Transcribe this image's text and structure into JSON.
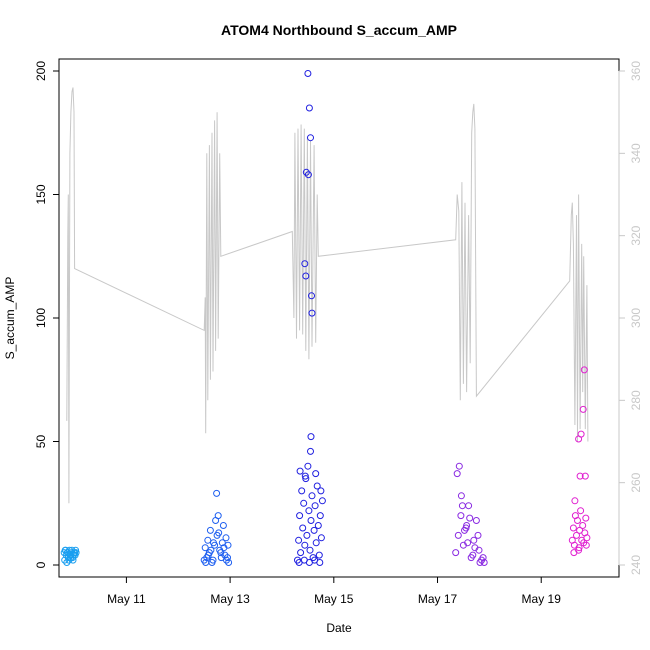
{
  "chart_data": {
    "type": "scatter",
    "title": "ATOM4 Northbound S_accum_AMP",
    "xlabel": "Date",
    "ylabel": "S_accum_AMP",
    "x_unit": "days (May, day-of-month)",
    "xlim": [
      9.7,
      20.5
    ],
    "ylim": [
      0,
      200
    ],
    "y2lim": [
      240,
      360
    ],
    "x_ticks": [
      {
        "value": 11,
        "label": "May 11"
      },
      {
        "value": 13,
        "label": "May 13"
      },
      {
        "value": 15,
        "label": "May 15"
      },
      {
        "value": 17,
        "label": "May 17"
      },
      {
        "value": 19,
        "label": "May 19"
      }
    ],
    "y_ticks": [
      0,
      50,
      100,
      150,
      200
    ],
    "y2_ticks": [
      240,
      260,
      280,
      300,
      320,
      340,
      360
    ],
    "colors": {
      "line": "#c8c8c8",
      "axis": "#000000",
      "right_axis": "#c8c8c8"
    },
    "line_series": {
      "axis": "right",
      "points": [
        [
          9.85,
          275
        ],
        [
          9.87,
          320
        ],
        [
          9.88,
          330
        ],
        [
          9.89,
          255
        ],
        [
          9.9,
          300
        ],
        [
          9.91,
          340
        ],
        [
          9.93,
          350
        ],
        [
          9.95,
          355
        ],
        [
          9.97,
          356
        ],
        [
          9.99,
          350
        ],
        [
          10.0,
          312
        ],
        [
          12.5,
          297
        ],
        [
          12.52,
          305
        ],
        [
          12.53,
          272
        ],
        [
          12.55,
          340
        ],
        [
          12.57,
          280
        ],
        [
          12.6,
          342
        ],
        [
          12.62,
          285
        ],
        [
          12.65,
          345
        ],
        [
          12.67,
          287
        ],
        [
          12.7,
          348
        ],
        [
          12.72,
          292
        ],
        [
          12.75,
          350
        ],
        [
          12.77,
          295
        ],
        [
          12.8,
          340
        ],
        [
          12.82,
          315
        ],
        [
          14.2,
          321
        ],
        [
          14.23,
          300
        ],
        [
          14.25,
          345
        ],
        [
          14.28,
          295
        ],
        [
          14.31,
          346
        ],
        [
          14.34,
          297
        ],
        [
          14.37,
          347
        ],
        [
          14.4,
          296
        ],
        [
          14.43,
          346
        ],
        [
          14.46,
          292
        ],
        [
          14.49,
          344
        ],
        [
          14.52,
          290
        ],
        [
          14.55,
          343
        ],
        [
          14.58,
          293
        ],
        [
          14.62,
          342
        ],
        [
          14.65,
          294
        ],
        [
          14.68,
          330
        ],
        [
          14.7,
          315
        ],
        [
          17.35,
          319
        ],
        [
          17.38,
          330
        ],
        [
          17.41,
          326
        ],
        [
          17.44,
          280
        ],
        [
          17.47,
          333
        ],
        [
          17.5,
          284
        ],
        [
          17.53,
          328
        ],
        [
          17.56,
          282
        ],
        [
          17.6,
          325
        ],
        [
          17.63,
          289
        ],
        [
          17.66,
          345
        ],
        [
          17.68,
          350
        ],
        [
          17.7,
          352
        ],
        [
          17.72,
          346
        ],
        [
          17.75,
          281
        ],
        [
          19.55,
          309
        ],
        [
          19.58,
          325
        ],
        [
          19.6,
          328
        ],
        [
          19.62,
          318
        ],
        [
          19.65,
          274
        ],
        [
          19.68,
          325
        ],
        [
          19.7,
          270
        ],
        [
          19.72,
          330
        ],
        [
          19.75,
          273
        ],
        [
          19.78,
          318
        ],
        [
          19.8,
          282
        ],
        [
          19.82,
          315
        ],
        [
          19.85,
          273
        ],
        [
          19.88,
          308
        ],
        [
          19.9,
          270
        ]
      ]
    },
    "scatter_groups": [
      {
        "color": "#1a9ff0",
        "points": [
          [
            9.8,
            5
          ],
          [
            9.82,
            6
          ],
          [
            9.84,
            4
          ],
          [
            9.86,
            5
          ],
          [
            9.88,
            3
          ],
          [
            9.9,
            6
          ],
          [
            9.92,
            4
          ],
          [
            9.94,
            5
          ],
          [
            9.96,
            3
          ],
          [
            9.98,
            4
          ],
          [
            10.0,
            5
          ],
          [
            10.02,
            6
          ],
          [
            9.81,
            2
          ],
          [
            9.85,
            1
          ],
          [
            9.89,
            2
          ],
          [
            9.93,
            3
          ],
          [
            9.97,
            2
          ],
          [
            10.01,
            4
          ],
          [
            9.83,
            6
          ],
          [
            9.87,
            5
          ],
          [
            9.91,
            4
          ],
          [
            9.95,
            6
          ],
          [
            9.99,
            5
          ],
          [
            10.03,
            5
          ]
        ]
      },
      {
        "color": "#1e5ff0",
        "points": [
          [
            12.5,
            2
          ],
          [
            12.55,
            3
          ],
          [
            12.6,
            5
          ],
          [
            12.65,
            1
          ],
          [
            12.7,
            8
          ],
          [
            12.75,
            12
          ],
          [
            12.8,
            6
          ],
          [
            12.85,
            9
          ],
          [
            12.9,
            4
          ],
          [
            12.95,
            3
          ],
          [
            12.52,
            7
          ],
          [
            12.57,
            10
          ],
          [
            12.62,
            14
          ],
          [
            12.67,
            2
          ],
          [
            12.72,
            18
          ],
          [
            12.77,
            20
          ],
          [
            12.82,
            5
          ],
          [
            12.87,
            16
          ],
          [
            12.92,
            11
          ],
          [
            12.97,
            1
          ],
          [
            12.74,
            29
          ],
          [
            12.58,
            4
          ],
          [
            12.63,
            6
          ],
          [
            12.68,
            9
          ],
          [
            12.78,
            13
          ],
          [
            12.88,
            7
          ],
          [
            12.93,
            2
          ],
          [
            12.53,
            1
          ],
          [
            12.83,
            3
          ],
          [
            12.96,
            8
          ]
        ]
      },
      {
        "color": "#2020e0",
        "points": [
          [
            14.3,
            2
          ],
          [
            14.32,
            10
          ],
          [
            14.34,
            20
          ],
          [
            14.36,
            5
          ],
          [
            14.38,
            30
          ],
          [
            14.4,
            15
          ],
          [
            14.42,
            25
          ],
          [
            14.44,
            8
          ],
          [
            14.46,
            35
          ],
          [
            14.48,
            12
          ],
          [
            14.5,
            40
          ],
          [
            14.52,
            22
          ],
          [
            14.54,
            6
          ],
          [
            14.56,
            18
          ],
          [
            14.58,
            28
          ],
          [
            14.6,
            3
          ],
          [
            14.62,
            14
          ],
          [
            14.64,
            24
          ],
          [
            14.66,
            9
          ],
          [
            14.68,
            32
          ],
          [
            14.7,
            16
          ],
          [
            14.72,
            4
          ],
          [
            14.74,
            20
          ],
          [
            14.76,
            11
          ],
          [
            14.78,
            26
          ],
          [
            14.35,
            38
          ],
          [
            14.45,
            36
          ],
          [
            14.55,
            46
          ],
          [
            14.65,
            37
          ],
          [
            14.75,
            30
          ],
          [
            14.5,
            199
          ],
          [
            14.53,
            185
          ],
          [
            14.55,
            173
          ],
          [
            14.47,
            159
          ],
          [
            14.51,
            158
          ],
          [
            14.44,
            122
          ],
          [
            14.46,
            117
          ],
          [
            14.57,
            109
          ],
          [
            14.58,
            102
          ],
          [
            14.56,
            52
          ],
          [
            14.33,
            1
          ],
          [
            14.43,
            2
          ],
          [
            14.53,
            1
          ],
          [
            14.63,
            2
          ],
          [
            14.73,
            1
          ]
        ]
      },
      {
        "color": "#8a2be2",
        "points": [
          [
            17.35,
            5
          ],
          [
            17.4,
            12
          ],
          [
            17.45,
            20
          ],
          [
            17.5,
            8
          ],
          [
            17.55,
            15
          ],
          [
            17.6,
            24
          ],
          [
            17.65,
            3
          ],
          [
            17.7,
            10
          ],
          [
            17.75,
            18
          ],
          [
            17.8,
            6
          ],
          [
            17.85,
            2
          ],
          [
            17.9,
            1
          ],
          [
            17.38,
            37
          ],
          [
            17.42,
            40
          ],
          [
            17.48,
            24
          ],
          [
            17.52,
            14
          ],
          [
            17.58,
            9
          ],
          [
            17.62,
            19
          ],
          [
            17.68,
            4
          ],
          [
            17.72,
            7
          ],
          [
            17.78,
            12
          ],
          [
            17.82,
            1
          ],
          [
            17.88,
            3
          ],
          [
            17.46,
            28
          ],
          [
            17.56,
            16
          ]
        ]
      },
      {
        "color": "#e020d0",
        "points": [
          [
            19.6,
            10
          ],
          [
            19.62,
            15
          ],
          [
            19.64,
            8
          ],
          [
            19.66,
            20
          ],
          [
            19.68,
            12
          ],
          [
            19.7,
            18
          ],
          [
            19.72,
            6
          ],
          [
            19.74,
            14
          ],
          [
            19.76,
            22
          ],
          [
            19.78,
            10
          ],
          [
            19.8,
            16
          ],
          [
            19.82,
            9
          ],
          [
            19.84,
            13
          ],
          [
            19.86,
            19
          ],
          [
            19.88,
            11
          ],
          [
            19.65,
            26
          ],
          [
            19.75,
            36
          ],
          [
            19.85,
            36
          ],
          [
            19.72,
            51
          ],
          [
            19.77,
            53
          ],
          [
            19.81,
            63
          ],
          [
            19.83,
            79
          ],
          [
            19.63,
            5
          ],
          [
            19.73,
            7
          ],
          [
            19.87,
            8
          ]
        ]
      }
    ]
  }
}
